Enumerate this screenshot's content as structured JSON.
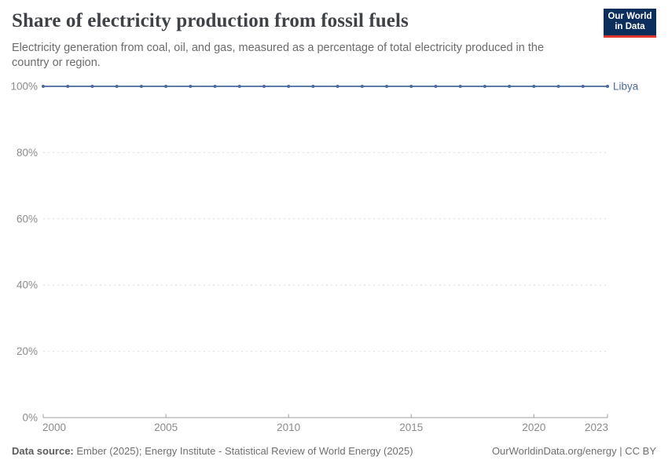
{
  "header": {
    "title": "Share of electricity production from fossil fuels",
    "subtitle": "Electricity generation from coal, oil, and gas, measured as a percentage of total electricity produced in the country or region.",
    "logo": {
      "line1": "Our World",
      "line2": "in Data",
      "bg_color": "#0c2e5c",
      "accent_color": "#e0352b"
    }
  },
  "chart_data": {
    "type": "line",
    "title": "Share of electricity production from fossil fuels",
    "xlabel": "",
    "ylabel": "",
    "xlim": [
      2000,
      2023
    ],
    "ylim": [
      0,
      100
    ],
    "grid": "horizontal-dashed",
    "legend_position": "end-of-line-label",
    "x_ticks": [
      {
        "v": 2000,
        "label": "2000"
      },
      {
        "v": 2005,
        "label": "2005"
      },
      {
        "v": 2010,
        "label": "2010"
      },
      {
        "v": 2015,
        "label": "2015"
      },
      {
        "v": 2020,
        "label": "2020"
      },
      {
        "v": 2023,
        "label": "2023"
      }
    ],
    "y_ticks": [
      {
        "v": 0,
        "label": "0%"
      },
      {
        "v": 20,
        "label": "20%"
      },
      {
        "v": 40,
        "label": "40%"
      },
      {
        "v": 60,
        "label": "60%"
      },
      {
        "v": 80,
        "label": "80%"
      },
      {
        "v": 100,
        "label": "100%"
      }
    ],
    "series": [
      {
        "name": "Libya",
        "color": "#4c6a9c",
        "line_color": "#5b7cab",
        "x": [
          2000,
          2001,
          2002,
          2003,
          2004,
          2005,
          2006,
          2007,
          2008,
          2009,
          2010,
          2011,
          2012,
          2013,
          2014,
          2015,
          2016,
          2017,
          2018,
          2019,
          2020,
          2021,
          2022,
          2023
        ],
        "values": [
          100,
          100,
          100,
          100,
          100,
          100,
          100,
          100,
          100,
          100,
          100,
          100,
          100,
          100,
          100,
          100,
          100,
          100,
          100,
          100,
          100,
          100,
          100,
          100
        ]
      }
    ],
    "axis_color": "#9e9e9e",
    "grid_color": "#dcdcdc",
    "tick_label_color": "#8b8b8b"
  },
  "footer": {
    "source_label": "Data source:",
    "source_text": " Ember (2025); Energy Institute - Statistical Review of World Energy (2025)",
    "credit": "OurWorldinData.org/energy | CC BY"
  }
}
